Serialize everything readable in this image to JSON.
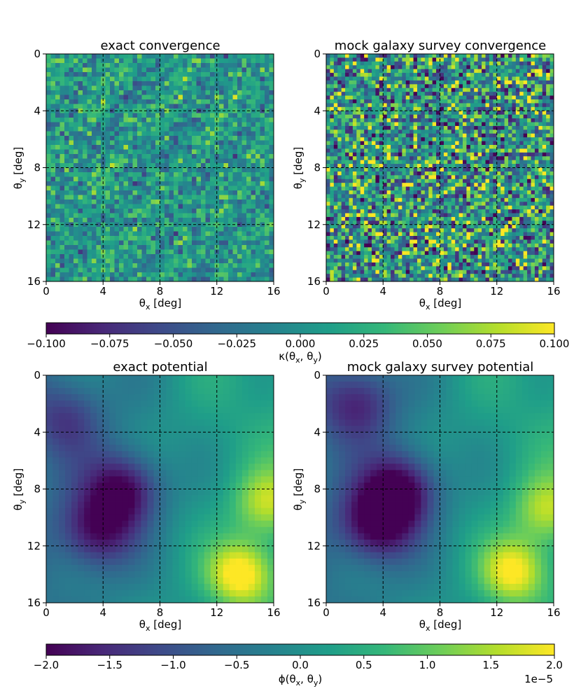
{
  "chart_data": [
    {
      "type": "heatmap",
      "title": "exact convergence",
      "xlabel": "θ_x [deg]",
      "ylabel": "θ_y [deg]",
      "xlim": [
        0,
        16
      ],
      "ylim": [
        16,
        0
      ],
      "xticks": [
        "0",
        "4",
        "8",
        "12",
        "16"
      ],
      "yticks": [
        "0",
        "4",
        "8",
        "12",
        "16"
      ],
      "grid": "dashed black at 4, 8, 12",
      "colormap": "viridis",
      "texture": "fine"
    },
    {
      "type": "heatmap",
      "title": "mock galaxy survey convergence",
      "xlabel": "θ_x [deg]",
      "ylabel": "θ_y [deg]",
      "xlim": [
        0,
        16
      ],
      "ylim": [
        16,
        0
      ],
      "xticks": [
        "0",
        "4",
        "8",
        "12",
        "16"
      ],
      "yticks": [
        "0",
        "4",
        "8",
        "12",
        "16"
      ],
      "grid": "dashed black at 4, 8, 12",
      "colormap": "viridis",
      "texture": "noisy"
    },
    {
      "type": "heatmap",
      "title": "exact potential",
      "xlabel": "θ_x [deg]",
      "ylabel": "θ_y [deg]",
      "xlim": [
        0,
        16
      ],
      "ylim": [
        16,
        0
      ],
      "xticks": [
        "0",
        "4",
        "8",
        "12",
        "16"
      ],
      "yticks": [
        "0",
        "4",
        "8",
        "12",
        "16"
      ],
      "grid": "dashed black at 4, 8, 12",
      "colormap": "viridis",
      "texture": "smooth",
      "features": [
        {
          "kind": "minimum",
          "x": 5.5,
          "y": 8,
          "value": -1.9e-05
        },
        {
          "kind": "minimum",
          "x": 3.5,
          "y": 11,
          "value": -1.6e-05
        },
        {
          "kind": "minimum",
          "x": 1.5,
          "y": 3,
          "value": -1e-05
        },
        {
          "kind": "maximum",
          "x": 13.7,
          "y": 14,
          "value": 2e-05
        },
        {
          "kind": "maximum",
          "x": 15.5,
          "y": 9,
          "value": 1.2e-05
        }
      ]
    },
    {
      "type": "heatmap",
      "title": "mock galaxy survey potential",
      "xlabel": "θ_x [deg]",
      "ylabel": "θ_y [deg]",
      "xlim": [
        0,
        16
      ],
      "ylim": [
        16,
        0
      ],
      "xticks": [
        "0",
        "4",
        "8",
        "12",
        "16"
      ],
      "yticks": [
        "0",
        "4",
        "8",
        "12",
        "16"
      ],
      "grid": "dashed black at 4, 8, 12",
      "colormap": "viridis",
      "texture": "smooth",
      "features": [
        {
          "kind": "minimum",
          "x": 5.3,
          "y": 8,
          "value": -2e-05
        },
        {
          "kind": "minimum",
          "x": 3.5,
          "y": 10.5,
          "value": -1.9e-05
        },
        {
          "kind": "minimum",
          "x": 2.2,
          "y": 2,
          "value": -1.4e-05
        },
        {
          "kind": "maximum",
          "x": 13.2,
          "y": 13.8,
          "value": 1.8e-05
        },
        {
          "kind": "maximum",
          "x": 15.5,
          "y": 9.5,
          "value": 1.2e-05
        }
      ]
    }
  ],
  "colorbars": [
    {
      "label": "κ(θ_x, θ_y)",
      "range": [
        -0.1,
        0.1
      ],
      "ticks": [
        "−0.100",
        "−0.075",
        "−0.050",
        "−0.025",
        "0.000",
        "0.025",
        "0.050",
        "0.075",
        "0.100"
      ],
      "offset": ""
    },
    {
      "label": "ϕ(θ_x, θ_y)",
      "range": [
        -2.0,
        2.0
      ],
      "ticks": [
        "−2.0",
        "−1.5",
        "−1.0",
        "−0.5",
        "0.0",
        "0.5",
        "1.0",
        "1.5",
        "2.0"
      ],
      "offset": "1e−5"
    }
  ],
  "colors": {
    "viridis": [
      "#440154",
      "#482878",
      "#3e4a89",
      "#31688e",
      "#26828e",
      "#1f9e89",
      "#35b779",
      "#6ece58",
      "#b5de2b",
      "#fde725"
    ]
  }
}
